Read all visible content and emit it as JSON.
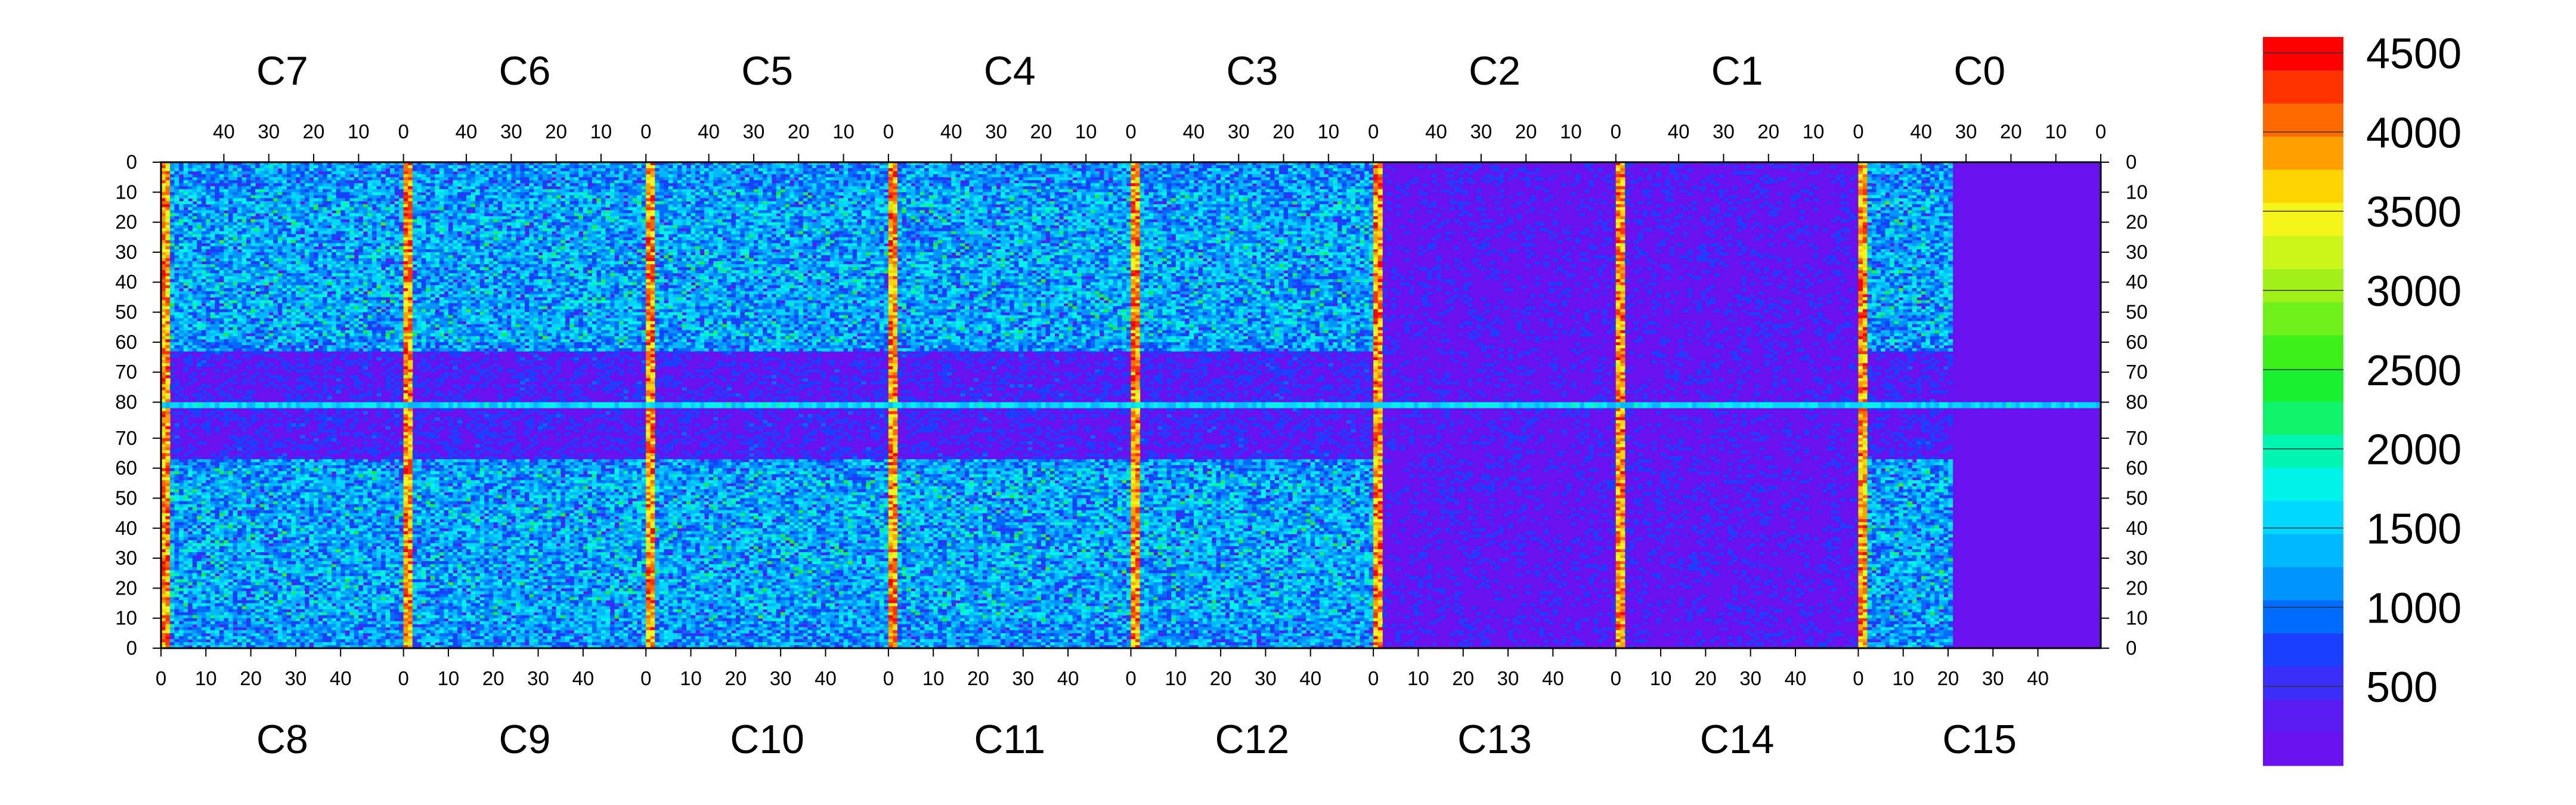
{
  "chart_data": {
    "type": "heatmap",
    "title": "",
    "xlabel": "",
    "ylabel": "",
    "top_chip_labels": [
      "C7",
      "C6",
      "C5",
      "C4",
      "C3",
      "C2",
      "C1",
      "C0"
    ],
    "bottom_chip_labels": [
      "C8",
      "C9",
      "C10",
      "C11",
      "C12",
      "C13",
      "C14",
      "C15"
    ],
    "top_chip_column_ticks": [
      "40",
      "30",
      "20",
      "10",
      "0"
    ],
    "bottom_chip_column_ticks": [
      "0",
      "10",
      "20",
      "30",
      "40"
    ],
    "top_row_ticks": [
      "0",
      "10",
      "20",
      "30",
      "40",
      "50",
      "60",
      "70",
      "80"
    ],
    "bottom_row_ticks": [
      "70",
      "60",
      "50",
      "40",
      "30",
      "20",
      "10",
      "0"
    ],
    "colorbar_ticks": [
      "4500",
      "4000",
      "3500",
      "3000",
      "2500",
      "2000",
      "1500",
      "1000",
      "500"
    ],
    "zlim": [
      0,
      4600
    ],
    "colorbar_colors": [
      "#6a11ef",
      "#5a1cf2",
      "#3a2ef8",
      "#1a3ffe",
      "#006bff",
      "#0094ff",
      "#00b8ff",
      "#00d8ff",
      "#00f2e8",
      "#00f5b0",
      "#10f26a",
      "#18f030",
      "#3ef01a",
      "#70f01a",
      "#a2f01a",
      "#ccf51a",
      "#f5f51a",
      "#ffd400",
      "#ffa000",
      "#ff6a00",
      "#ff3300",
      "#ff0000"
    ],
    "grid": false,
    "legend": "colorbar-right"
  }
}
